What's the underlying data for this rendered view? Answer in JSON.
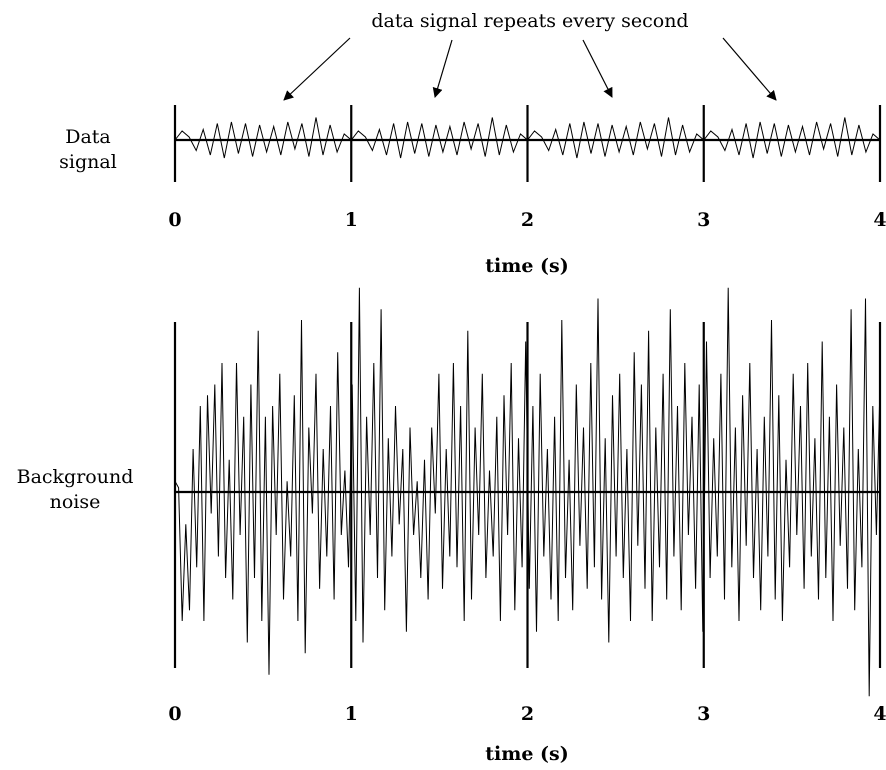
{
  "annotation": "data signal repeats every second",
  "chart_data": [
    {
      "type": "line",
      "ylabel_lines": [
        "Data",
        "signal"
      ],
      "xlabel": "time (s)",
      "x_ticks": [
        "0",
        "1",
        "2",
        "3",
        "4"
      ],
      "xlim": [
        0,
        4
      ],
      "ylim": [
        -1,
        1
      ],
      "period": 1,
      "series": [
        {
          "x": [
            0,
            0.04,
            0.08,
            0.12,
            0.16,
            0.2,
            0.24,
            0.28,
            0.32,
            0.36,
            0.4,
            0.44,
            0.48,
            0.52,
            0.56,
            0.6,
            0.64,
            0.68,
            0.72,
            0.76,
            0.8,
            0.84,
            0.88,
            0.92,
            0.96,
            1.0
          ],
          "y": [
            0.0,
            0.3,
            0.1,
            -0.35,
            0.35,
            -0.5,
            0.55,
            -0.6,
            0.6,
            -0.45,
            0.55,
            -0.55,
            0.5,
            -0.4,
            0.45,
            -0.5,
            0.6,
            -0.3,
            0.55,
            -0.55,
            0.75,
            -0.5,
            0.5,
            -0.4,
            0.2,
            0.0
          ]
        }
      ]
    },
    {
      "type": "line",
      "ylabel_lines": [
        "Background",
        "noise"
      ],
      "xlabel": "time (s)",
      "x_ticks": [
        "0",
        "1",
        "2",
        "3",
        "4"
      ],
      "xlim": [
        0,
        4
      ],
      "ylim": [
        -1,
        1
      ],
      "series": [
        {
          "y": [
            0.05,
            0.02,
            -0.6,
            -0.15,
            -0.55,
            0.2,
            -0.35,
            0.4,
            -0.6,
            0.45,
            -0.1,
            0.5,
            -0.3,
            0.6,
            -0.4,
            0.15,
            -0.5,
            0.6,
            -0.2,
            0.35,
            -0.7,
            0.5,
            -0.4,
            0.75,
            -0.6,
            0.35,
            -0.85,
            0.4,
            -0.2,
            0.55,
            -0.5,
            0.05,
            -0.3,
            0.45,
            -0.6,
            0.8,
            -0.75,
            0.3,
            -0.1,
            0.55,
            -0.45,
            0.2,
            -0.3,
            0.4,
            -0.5,
            0.65,
            -0.2,
            0.1,
            -0.35,
            0.5,
            -0.6,
            0.95,
            -0.7,
            0.35,
            -0.2,
            0.6,
            -0.4,
            0.85,
            -0.55,
            0.25,
            -0.3,
            0.4,
            -0.15,
            0.2,
            -0.65,
            0.3,
            -0.2,
            0.05,
            -0.4,
            0.15,
            -0.5,
            0.3,
            -0.1,
            0.55,
            -0.45,
            0.2,
            -0.3,
            0.6,
            -0.35,
            0.4,
            -0.6,
            0.75,
            -0.5,
            0.3,
            -0.2,
            0.55,
            -0.4,
            0.1,
            -0.3,
            0.35,
            -0.6,
            0.45,
            -0.2,
            0.6,
            -0.55,
            0.25,
            -0.35,
            0.7,
            -0.45,
            0.4,
            -0.65,
            0.55,
            -0.3,
            0.2,
            -0.5,
            0.35,
            -0.6,
            0.8,
            -0.4,
            0.15,
            -0.55,
            0.5,
            -0.25,
            0.3,
            -0.45,
            0.6,
            -0.35,
            0.9,
            -0.5,
            0.25,
            -0.7,
            0.45,
            -0.3,
            0.55,
            -0.4,
            0.2,
            -0.6,
            0.65,
            -0.25,
            0.5,
            -0.45,
            0.75,
            -0.6,
            0.3,
            -0.35,
            0.55,
            -0.5,
            0.85,
            -0.3,
            0.4,
            -0.55,
            0.6,
            -0.2,
            0.35,
            -0.45,
            0.5,
            -0.65,
            0.7,
            -0.4,
            0.25,
            -0.3,
            0.55,
            -0.5,
            0.95,
            -0.35,
            0.3,
            -0.6,
            0.45,
            -0.25,
            0.6,
            -0.4,
            0.2,
            -0.55,
            0.35,
            -0.3,
            0.8,
            -0.5,
            0.45,
            -0.6,
            0.15,
            -0.35,
            0.55,
            -0.2,
            0.4,
            -0.45,
            0.6,
            -0.3,
            0.25,
            -0.5,
            0.7,
            -0.4,
            0.35,
            -0.6,
            0.5,
            -0.25,
            0.3,
            -0.45,
            0.85,
            -0.55,
            0.2,
            -0.35,
            0.9,
            -0.95,
            0.4,
            -0.2,
            0.5
          ]
        }
      ]
    }
  ]
}
